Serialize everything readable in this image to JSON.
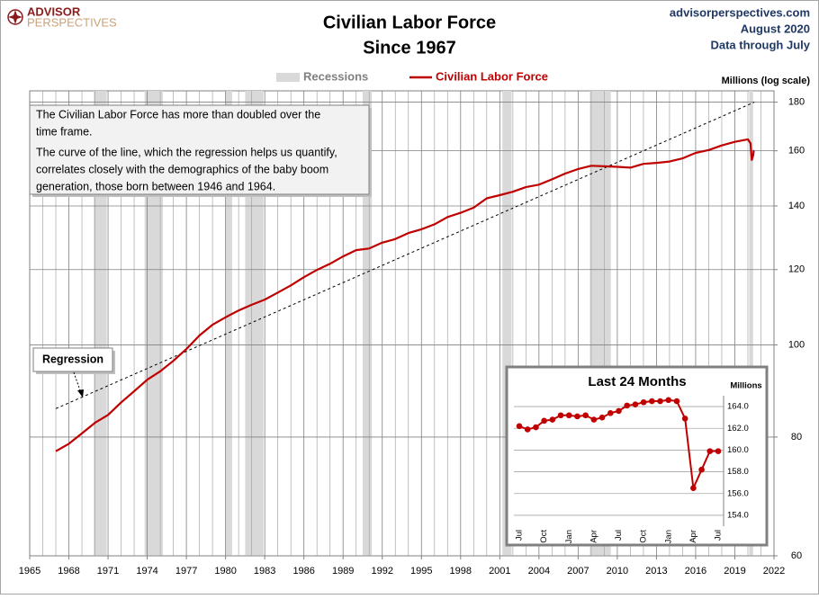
{
  "chart_data": [
    {
      "type": "line",
      "title": "Civilian Labor Force",
      "subtitle": "Since 1967",
      "logo": [
        "ADVISOR",
        "PERSPECTIVES"
      ],
      "source_lines": [
        "advisorperspectives.com",
        "August 2020",
        "Data through July"
      ],
      "y_label": "Millions  (log scale)",
      "log_y": true,
      "grid": true,
      "xlim": [
        1965,
        2022
      ],
      "xticks": [
        1965,
        1968,
        1971,
        1974,
        1977,
        1980,
        1983,
        1986,
        1989,
        1992,
        1995,
        1998,
        2001,
        2004,
        2007,
        2010,
        2013,
        2016,
        2019,
        2022
      ],
      "ylim": [
        60,
        185
      ],
      "yticks": [
        60,
        80,
        100,
        120,
        140,
        160,
        180
      ],
      "recession_label": "Recessions",
      "recession_color": "#d9d9d9",
      "recessions": [
        [
          1969.9,
          1970.9
        ],
        [
          1973.8,
          1975.2
        ],
        [
          1980.0,
          1980.5
        ],
        [
          1981.5,
          1982.9
        ],
        [
          1990.5,
          1991.2
        ],
        [
          2001.2,
          2001.9
        ],
        [
          2007.9,
          2009.5
        ],
        [
          2020.1,
          2020.4
        ]
      ],
      "series": [
        {
          "name": "Civilian Labor Force",
          "color": "#c00000",
          "x": [
            1967,
            1968,
            1969,
            1970,
            1971,
            1972,
            1973,
            1974,
            1975,
            1976,
            1977,
            1978,
            1979,
            1980,
            1981,
            1982,
            1983,
            1984,
            1985,
            1986,
            1987,
            1988,
            1989,
            1990,
            1991,
            1992,
            1993,
            1994,
            1995,
            1996,
            1997,
            1998,
            1999,
            2000,
            2001,
            2002,
            2003,
            2004,
            2005,
            2006,
            2007,
            2008,
            2009,
            2010,
            2011,
            2012,
            2013,
            2014,
            2015,
            2016,
            2017,
            2018,
            2019,
            2020.0,
            2020.2,
            2020.3,
            2020.4,
            2020.45,
            2020.5
          ],
          "values": [
            77.3,
            78.7,
            80.7,
            82.8,
            84.4,
            87.0,
            89.4,
            91.9,
            93.8,
            96.2,
            99.0,
            102.3,
            105.0,
            106.9,
            108.7,
            110.2,
            111.6,
            113.5,
            115.5,
            117.8,
            119.9,
            121.7,
            123.9,
            125.8,
            126.3,
            128.1,
            129.2,
            131.1,
            132.3,
            133.9,
            136.3,
            137.7,
            139.4,
            142.6,
            143.7,
            144.9,
            146.5,
            147.4,
            149.3,
            151.4,
            153.1,
            154.3,
            154.1,
            153.9,
            153.6,
            155.0,
            155.4,
            155.9,
            157.1,
            159.2,
            160.3,
            162.1,
            163.5,
            164.5,
            162.9,
            156.5,
            158.2,
            159.9,
            159.9
          ]
        }
      ],
      "regression": {
        "label": "Regression",
        "x": [
          1967,
          2020.5
        ],
        "values": [
          85.7,
          180
        ]
      },
      "annotation": [
        "The Civilian Labor Force has more than doubled over the",
        "time frame.",
        "The curve of the line, which the regression helps us quantify,",
        "correlates closely with the demographics of the baby boom",
        "generation, those born between 1946 and 1964."
      ]
    },
    {
      "type": "line",
      "title": "Last 24 Months",
      "y_label": "Millions",
      "categories": [
        "Jul",
        null,
        null,
        "Oct",
        null,
        null,
        "Jan",
        null,
        null,
        "Apr",
        null,
        null,
        "Jul",
        null,
        null,
        "Oct",
        null,
        null,
        "Jan",
        null,
        null,
        "Apr",
        null,
        null,
        "Jul"
      ],
      "ylim": [
        153,
        165
      ],
      "yticks": [
        {
          "value": 154,
          "label": "154.0"
        },
        {
          "value": 156,
          "label": "156.0"
        },
        {
          "value": 158,
          "label": "158.0"
        },
        {
          "value": 160,
          "label": "160.0"
        },
        {
          "value": 162,
          "label": "162.0"
        },
        {
          "value": 164,
          "label": "164.0"
        }
      ],
      "grid": true,
      "markers": true,
      "series": [
        {
          "name": "Civilian Labor Force",
          "color": "#c00000",
          "values": [
            162.2,
            161.9,
            162.1,
            162.7,
            162.8,
            163.2,
            163.2,
            163.1,
            163.2,
            162.8,
            163.0,
            163.4,
            163.6,
            164.1,
            164.2,
            164.4,
            164.5,
            164.5,
            164.6,
            164.5,
            162.9,
            156.5,
            158.2,
            159.9,
            159.9
          ]
        }
      ]
    }
  ]
}
